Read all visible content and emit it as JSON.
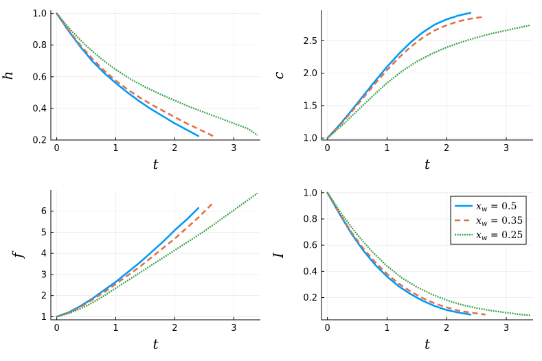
{
  "colors": {
    "s1": "#009af9",
    "s2": "#e26f46",
    "s3": "#3da44d"
  },
  "legend": {
    "placement": "top-right of bottom-right panel",
    "entries": [
      {
        "var": "x",
        "sub": "w",
        "eq": " = 0.5"
      },
      {
        "var": "x",
        "sub": "w",
        "eq": " = 0.35"
      },
      {
        "var": "x",
        "sub": "w",
        "eq": " = 0.25"
      }
    ]
  },
  "chart_data": [
    {
      "type": "line",
      "ylabel": "h",
      "xlabel": "t",
      "xlim": [
        -0.1,
        3.45
      ],
      "ylim": [
        0.2,
        1.02
      ],
      "xticks": [
        "0",
        "1",
        "2",
        "3"
      ],
      "yticks": [
        "0.2",
        "0.4",
        "0.6",
        "0.8",
        "1.0"
      ],
      "grid": true,
      "series": [
        {
          "style": "solid",
          "x": [
            0,
            0.2,
            0.4,
            0.6,
            0.8,
            1.0,
            1.2,
            1.4,
            1.6,
            1.8,
            2.0,
            2.2,
            2.4
          ],
          "y": [
            1.0,
            0.89,
            0.79,
            0.7,
            0.625,
            0.56,
            0.5,
            0.445,
            0.395,
            0.35,
            0.305,
            0.265,
            0.225
          ]
        },
        {
          "style": "dashed",
          "x": [
            0,
            0.2,
            0.4,
            0.6,
            0.8,
            1.0,
            1.2,
            1.4,
            1.6,
            1.8,
            2.0,
            2.2,
            2.4,
            2.65
          ],
          "y": [
            1.0,
            0.895,
            0.8,
            0.715,
            0.64,
            0.575,
            0.52,
            0.47,
            0.425,
            0.385,
            0.345,
            0.305,
            0.27,
            0.225
          ]
        },
        {
          "style": "dotted",
          "x": [
            0,
            0.25,
            0.5,
            0.75,
            1.0,
            1.25,
            1.5,
            1.75,
            2.0,
            2.25,
            2.5,
            2.75,
            3.0,
            3.25,
            3.4
          ],
          "y": [
            1.0,
            0.89,
            0.795,
            0.715,
            0.645,
            0.585,
            0.535,
            0.49,
            0.45,
            0.41,
            0.375,
            0.34,
            0.305,
            0.27,
            0.23
          ]
        }
      ]
    },
    {
      "type": "line",
      "ylabel": "c",
      "xlabel": "t",
      "xlim": [
        -0.1,
        3.45
      ],
      "ylim": [
        0.97,
        2.97
      ],
      "xticks": [
        "0",
        "1",
        "2",
        "3"
      ],
      "yticks": [
        "1.0",
        "1.5",
        "2.0",
        "2.5"
      ],
      "grid": true,
      "series": [
        {
          "style": "solid",
          "x": [
            0,
            0.2,
            0.4,
            0.6,
            0.8,
            1.0,
            1.2,
            1.4,
            1.6,
            1.8,
            2.0,
            2.2,
            2.4
          ],
          "y": [
            1.0,
            1.2,
            1.42,
            1.65,
            1.88,
            2.1,
            2.3,
            2.48,
            2.63,
            2.75,
            2.83,
            2.89,
            2.93
          ]
        },
        {
          "style": "dashed",
          "x": [
            0,
            0.2,
            0.4,
            0.6,
            0.8,
            1.0,
            1.2,
            1.4,
            1.6,
            1.8,
            2.0,
            2.2,
            2.4,
            2.62
          ],
          "y": [
            1.0,
            1.19,
            1.4,
            1.62,
            1.84,
            2.05,
            2.24,
            2.41,
            2.55,
            2.66,
            2.74,
            2.8,
            2.84,
            2.87
          ]
        },
        {
          "style": "dotted",
          "x": [
            0,
            0.25,
            0.5,
            0.75,
            1.0,
            1.25,
            1.5,
            1.75,
            2.0,
            2.25,
            2.5,
            2.75,
            3.0,
            3.25,
            3.4
          ],
          "y": [
            1.0,
            1.2,
            1.42,
            1.64,
            1.85,
            2.03,
            2.18,
            2.3,
            2.4,
            2.48,
            2.55,
            2.61,
            2.66,
            2.71,
            2.74
          ]
        }
      ]
    },
    {
      "type": "line",
      "ylabel": "f",
      "xlabel": "t",
      "xlim": [
        -0.1,
        3.45
      ],
      "ylim": [
        0.85,
        7.0
      ],
      "xticks": [
        "0",
        "1",
        "2",
        "3"
      ],
      "yticks": [
        "1",
        "2",
        "3",
        "4",
        "5",
        "6"
      ],
      "grid": true,
      "series": [
        {
          "style": "solid",
          "x": [
            0,
            0.2,
            0.4,
            0.6,
            0.8,
            1.0,
            1.2,
            1.4,
            1.6,
            1.8,
            2.0,
            2.2,
            2.4
          ],
          "y": [
            1.0,
            1.2,
            1.5,
            1.85,
            2.25,
            2.65,
            3.1,
            3.55,
            4.05,
            4.55,
            5.1,
            5.6,
            6.15
          ]
        },
        {
          "style": "dashed",
          "x": [
            0,
            0.2,
            0.4,
            0.6,
            0.8,
            1.0,
            1.2,
            1.4,
            1.6,
            1.8,
            2.0,
            2.2,
            2.4,
            2.65
          ],
          "y": [
            1.0,
            1.18,
            1.45,
            1.8,
            2.15,
            2.55,
            2.95,
            3.35,
            3.8,
            4.25,
            4.7,
            5.2,
            5.7,
            6.4
          ]
        },
        {
          "style": "dotted",
          "x": [
            0,
            0.25,
            0.5,
            0.75,
            1.0,
            1.25,
            1.5,
            1.75,
            2.0,
            2.25,
            2.5,
            2.75,
            3.0,
            3.25,
            3.4
          ],
          "y": [
            1.0,
            1.2,
            1.5,
            1.9,
            2.35,
            2.8,
            3.25,
            3.7,
            4.15,
            4.6,
            5.05,
            5.55,
            6.05,
            6.55,
            6.85
          ]
        }
      ]
    },
    {
      "type": "line",
      "ylabel": "I",
      "xlabel": "t",
      "xlim": [
        -0.1,
        3.45
      ],
      "ylim": [
        0.03,
        1.02
      ],
      "xticks": [
        "0",
        "1",
        "2",
        "3"
      ],
      "yticks": [
        "0.2",
        "0.4",
        "0.6",
        "0.8",
        "1.0"
      ],
      "grid": true,
      "series": [
        {
          "style": "solid",
          "x": [
            0,
            0.2,
            0.4,
            0.6,
            0.8,
            1.0,
            1.2,
            1.4,
            1.6,
            1.8,
            2.0,
            2.2,
            2.4
          ],
          "y": [
            1.0,
            0.84,
            0.69,
            0.56,
            0.45,
            0.36,
            0.285,
            0.225,
            0.175,
            0.135,
            0.105,
            0.085,
            0.07
          ]
        },
        {
          "style": "dashed",
          "x": [
            0,
            0.2,
            0.4,
            0.6,
            0.8,
            1.0,
            1.2,
            1.4,
            1.6,
            1.8,
            2.0,
            2.2,
            2.4,
            2.65
          ],
          "y": [
            1.0,
            0.845,
            0.7,
            0.575,
            0.47,
            0.38,
            0.305,
            0.245,
            0.195,
            0.155,
            0.125,
            0.1,
            0.085,
            0.07
          ]
        },
        {
          "style": "dotted",
          "x": [
            0,
            0.25,
            0.5,
            0.75,
            1.0,
            1.25,
            1.5,
            1.75,
            2.0,
            2.25,
            2.5,
            2.75,
            3.0,
            3.25,
            3.4
          ],
          "y": [
            1.0,
            0.83,
            0.68,
            0.55,
            0.44,
            0.35,
            0.28,
            0.225,
            0.18,
            0.145,
            0.12,
            0.1,
            0.085,
            0.07,
            0.065
          ]
        }
      ]
    }
  ]
}
